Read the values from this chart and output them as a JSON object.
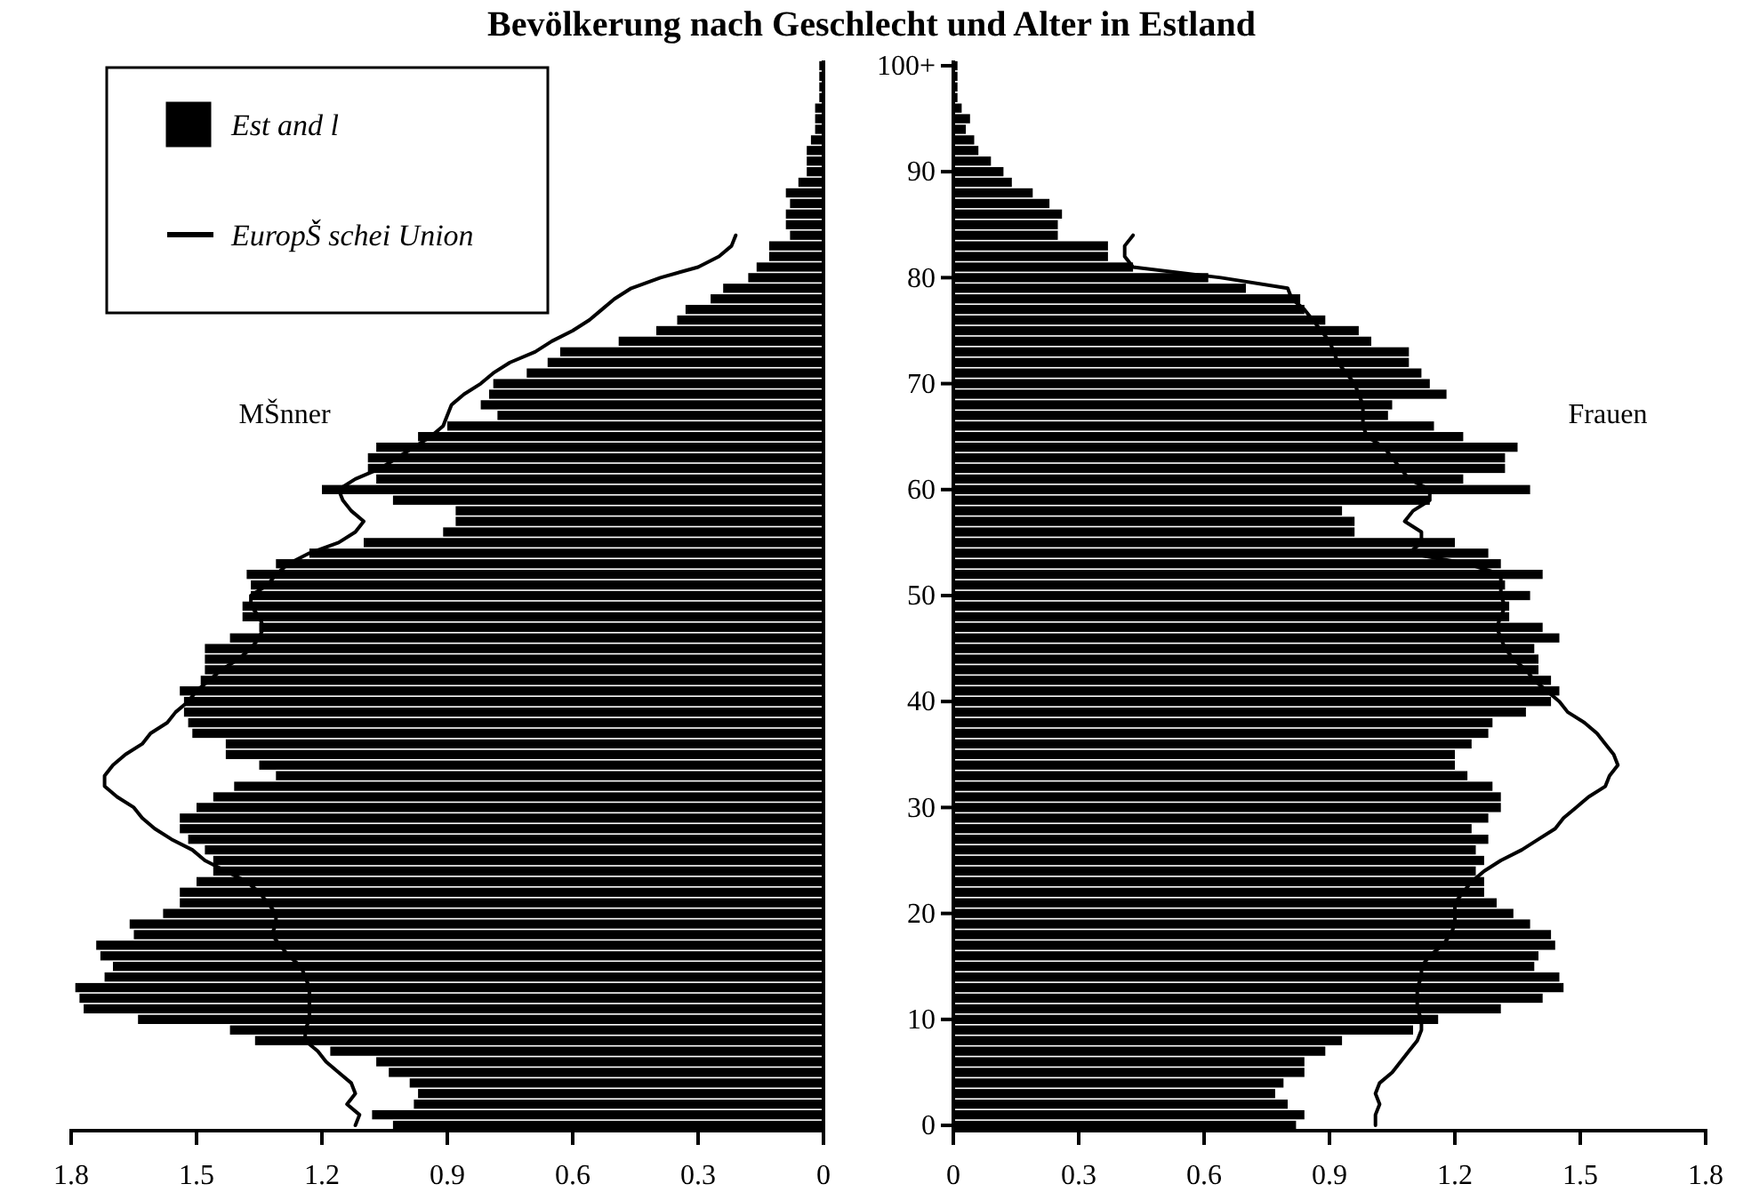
{
  "chart_data": [
    {
      "type": "bar",
      "orientation": "horizontal",
      "title": "Bevölkerung nach Geschlecht und Alter in Estland",
      "annotations": [
        "MŠnner"
      ],
      "legend": "top left",
      "categories": [
        null,
        null,
        null,
        null,
        null,
        null,
        null,
        null,
        null,
        null,
        null,
        null,
        null,
        null,
        null,
        null,
        null,
        null,
        null,
        null,
        null,
        null,
        null,
        null,
        null,
        null,
        null,
        null,
        null,
        null,
        null,
        null,
        null,
        null,
        null,
        null,
        null,
        null,
        null,
        null,
        null,
        null,
        null,
        null,
        null,
        null,
        null,
        null,
        null,
        null,
        null,
        null,
        null,
        null,
        null,
        null,
        null,
        null,
        null,
        null,
        null,
        null,
        null,
        null,
        null,
        null,
        null,
        null,
        null,
        null,
        null,
        null,
        null,
        null,
        null,
        null,
        null,
        null,
        null,
        null,
        null,
        null,
        null,
        null,
        null,
        null,
        null,
        null,
        null,
        null,
        null,
        null,
        null,
        null,
        null,
        null,
        null,
        null,
        null,
        null,
        null
      ],
      "xlim": [
        1.8,
        0
      ],
      "xticks": [
        1.8,
        1.5,
        1.2,
        0.9,
        0.6,
        0.3,
        0
      ],
      "series": [
        {
          "name": "Est and l",
          "color": "#000000",
          "values": [
            0.01,
            0.01,
            0.01,
            0.01,
            0.02,
            0.02,
            0.02,
            0.03,
            0.04,
            0.04,
            0.04,
            0.06,
            0.09,
            0.08,
            0.09,
            0.09,
            0.08,
            0.13,
            0.13,
            0.16,
            0.18,
            0.24,
            0.27,
            0.33,
            0.35,
            0.4,
            0.49,
            0.63,
            0.66,
            0.71,
            0.79,
            0.8,
            0.82,
            0.78,
            0.9,
            0.97,
            1.07,
            1.09,
            1.09,
            1.07,
            1.2,
            1.03,
            0.88,
            0.88,
            0.91,
            1.1,
            1.23,
            1.31,
            1.38,
            1.37,
            1.37,
            1.39,
            1.39,
            1.35,
            1.42,
            1.48,
            1.48,
            1.48,
            1.49,
            1.54,
            1.53,
            1.53,
            1.52,
            1.51,
            1.43,
            1.43,
            1.35,
            1.31,
            1.41,
            1.46,
            1.5,
            1.54,
            1.54,
            1.52,
            1.48,
            1.46,
            1.46,
            1.5,
            1.54,
            1.54,
            1.58,
            1.66,
            1.65,
            1.74,
            1.73,
            1.7,
            1.72,
            1.79,
            1.78,
            1.77,
            1.64,
            1.42,
            1.36,
            1.18,
            1.07,
            1.04,
            0.99,
            0.97,
            0.98,
            1.08,
            1.03
          ]
        },
        {
          "name": "EuropŠ schei Union",
          "type": "line",
          "color": "#000000",
          "values": [
            null,
            null,
            null,
            null,
            null,
            null,
            null,
            null,
            null,
            null,
            null,
            null,
            null,
            null,
            null,
            null,
            0.21,
            0.22,
            0.25,
            0.3,
            0.39,
            0.46,
            0.5,
            0.53,
            0.56,
            0.6,
            0.65,
            0.69,
            0.75,
            0.79,
            0.82,
            0.86,
            0.89,
            0.9,
            0.91,
            0.94,
            0.98,
            1.02,
            1.06,
            1.12,
            1.16,
            1.15,
            1.13,
            1.1,
            1.12,
            1.16,
            1.23,
            1.28,
            1.31,
            1.33,
            1.37,
            1.37,
            1.35,
            1.34,
            1.35,
            1.37,
            1.4,
            1.44,
            1.47,
            1.5,
            1.52,
            1.55,
            1.57,
            1.61,
            1.63,
            1.67,
            1.7,
            1.72,
            1.72,
            1.69,
            1.65,
            1.63,
            1.6,
            1.56,
            1.51,
            1.48,
            1.43,
            1.38,
            1.35,
            1.33,
            1.31,
            1.31,
            1.32,
            1.3,
            1.28,
            1.25,
            1.24,
            1.23,
            1.23,
            1.23,
            1.23,
            1.24,
            1.24,
            1.21,
            1.19,
            1.16,
            1.13,
            1.12,
            1.14,
            1.11,
            1.12
          ]
        }
      ]
    },
    {
      "type": "bar",
      "orientation": "horizontal",
      "annotations": [
        "Frauen"
      ],
      "categories": [
        "100+",
        null,
        null,
        null,
        null,
        null,
        null,
        null,
        null,
        null,
        "90",
        null,
        null,
        null,
        null,
        null,
        null,
        null,
        null,
        null,
        "80",
        null,
        null,
        null,
        null,
        null,
        null,
        null,
        null,
        null,
        "70",
        null,
        null,
        null,
        null,
        null,
        null,
        null,
        null,
        null,
        "60",
        null,
        null,
        null,
        null,
        null,
        null,
        null,
        null,
        null,
        "50",
        null,
        null,
        null,
        null,
        null,
        null,
        null,
        null,
        null,
        "40",
        null,
        null,
        null,
        null,
        null,
        null,
        null,
        null,
        null,
        "30",
        null,
        null,
        null,
        null,
        null,
        null,
        null,
        null,
        null,
        "20",
        null,
        null,
        null,
        null,
        null,
        null,
        null,
        null,
        null,
        "10",
        null,
        null,
        null,
        null,
        null,
        null,
        null,
        null,
        null,
        "0"
      ],
      "xlim": [
        0,
        1.8
      ],
      "xticks": [
        0,
        0.3,
        0.6,
        0.9,
        1.2,
        1.5,
        1.8
      ],
      "series": [
        {
          "color": "#000000",
          "values": [
            0.01,
            0.01,
            0.01,
            0.01,
            0.02,
            0.04,
            0.03,
            0.05,
            0.06,
            0.09,
            0.12,
            0.14,
            0.19,
            0.23,
            0.26,
            0.25,
            0.25,
            0.37,
            0.37,
            0.43,
            0.61,
            0.7,
            0.83,
            0.84,
            0.89,
            0.97,
            1.0,
            1.09,
            1.09,
            1.12,
            1.14,
            1.18,
            1.05,
            1.04,
            1.15,
            1.22,
            1.35,
            1.32,
            1.32,
            1.22,
            1.38,
            1.14,
            0.93,
            0.96,
            0.96,
            1.2,
            1.28,
            1.31,
            1.41,
            1.32,
            1.38,
            1.33,
            1.33,
            1.41,
            1.45,
            1.39,
            1.4,
            1.4,
            1.43,
            1.45,
            1.43,
            1.37,
            1.29,
            1.28,
            1.24,
            1.2,
            1.2,
            1.23,
            1.29,
            1.31,
            1.31,
            1.28,
            1.24,
            1.28,
            1.25,
            1.27,
            1.25,
            1.27,
            1.27,
            1.3,
            1.34,
            1.38,
            1.43,
            1.44,
            1.4,
            1.39,
            1.45,
            1.46,
            1.41,
            1.31,
            1.16,
            1.1,
            0.93,
            0.89,
            0.84,
            0.84,
            0.79,
            0.77,
            0.8,
            0.84,
            0.82
          ]
        },
        {
          "type": "line",
          "color": "#000000",
          "values": [
            null,
            null,
            null,
            null,
            null,
            null,
            null,
            null,
            null,
            null,
            null,
            null,
            null,
            null,
            null,
            null,
            0.43,
            0.41,
            0.41,
            0.43,
            0.64,
            0.8,
            0.81,
            0.84,
            0.86,
            0.88,
            0.9,
            0.91,
            0.92,
            0.94,
            0.96,
            0.97,
            0.98,
            0.98,
            0.98,
            0.99,
            1.03,
            1.05,
            1.07,
            1.09,
            1.14,
            1.14,
            1.1,
            1.08,
            1.12,
            1.12,
            1.09,
            1.23,
            1.31,
            1.31,
            1.31,
            1.32,
            1.31,
            1.3,
            1.31,
            1.32,
            1.34,
            1.37,
            1.39,
            1.42,
            1.45,
            1.47,
            1.51,
            1.54,
            1.56,
            1.58,
            1.59,
            1.57,
            1.56,
            1.52,
            1.49,
            1.46,
            1.44,
            1.4,
            1.36,
            1.31,
            1.27,
            1.24,
            1.22,
            1.2,
            1.2,
            1.2,
            1.19,
            1.17,
            1.14,
            1.12,
            1.12,
            1.11,
            1.11,
            1.11,
            1.12,
            1.12,
            1.11,
            1.09,
            1.07,
            1.05,
            1.02,
            1.01,
            1.02,
            1.01,
            1.01
          ]
        }
      ]
    }
  ]
}
